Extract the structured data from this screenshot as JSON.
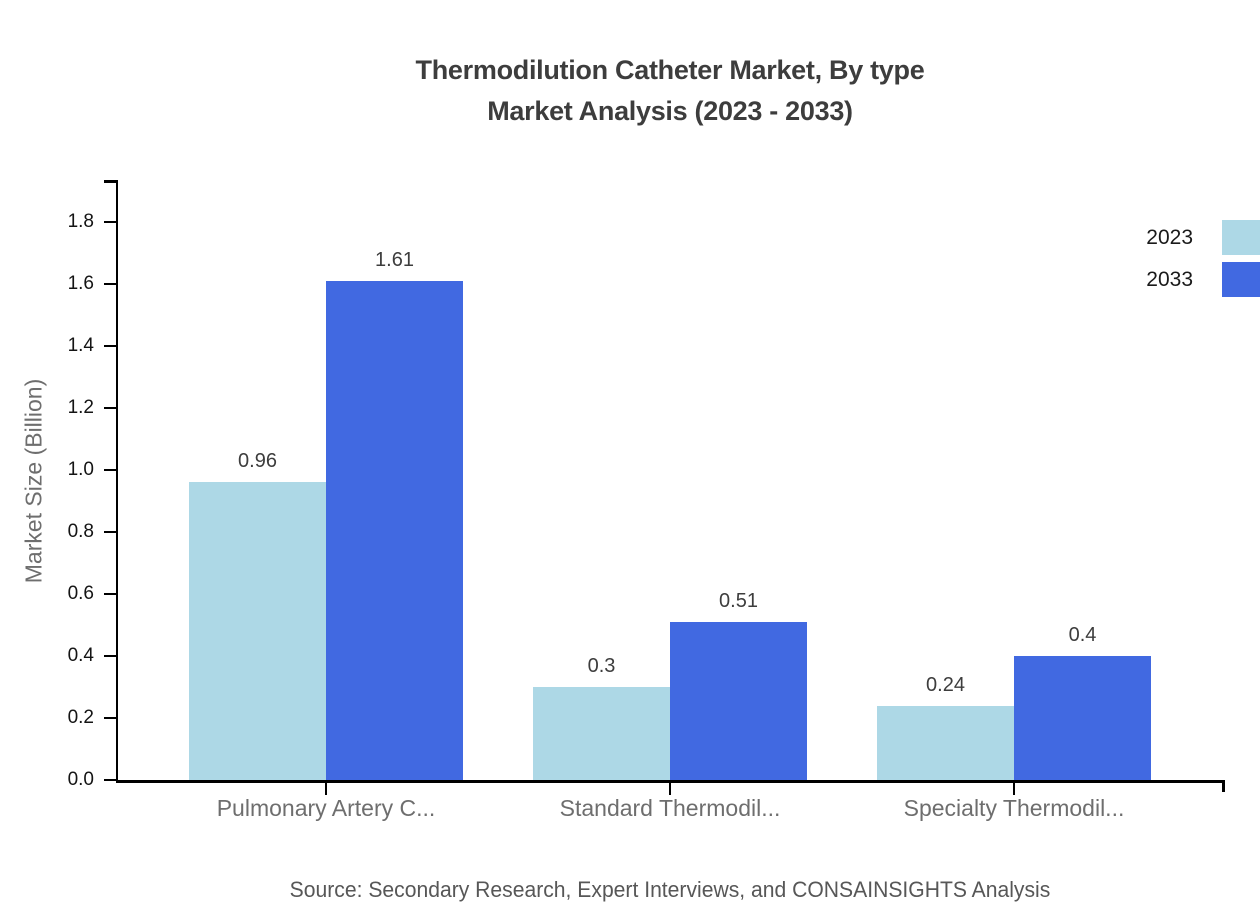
{
  "title": {
    "line1": "Thermodilution Catheter Market, By type",
    "line2": "Market Analysis (2023 - 2033)"
  },
  "source": "Source: Secondary Research, Expert Interviews, and CONSAINSIGHTS Analysis",
  "chart_data": {
    "type": "bar",
    "title": "Thermodilution Catheter Market, By type — Market Analysis (2023 - 2033)",
    "categories": [
      "Pulmonary Artery C...",
      "Standard Thermodil...",
      "Specialty Thermodil..."
    ],
    "series": [
      {
        "name": "2023",
        "color": "#ADD8E6",
        "values": [
          0.96,
          0.3,
          0.24
        ]
      },
      {
        "name": "2033",
        "color": "#4169E1",
        "values": [
          1.61,
          0.51,
          0.4
        ]
      }
    ],
    "xlabel": "",
    "ylabel": "Market Size (Billion)",
    "ylim": [
      0,
      1.94
    ],
    "yticks": [
      0.0,
      0.2,
      0.4,
      0.6,
      0.8,
      1.0,
      1.2,
      1.4,
      1.6,
      1.8
    ],
    "grid": false,
    "legend_position": "top-right",
    "value_labels_shown": true
  },
  "colors": {
    "axis": "#000000",
    "title_text": "#3d3d3d",
    "tick_label_text": "#141414",
    "category_label_text": "#6e6e6e",
    "value_label_text": "#3d3d3d",
    "source_text": "#575757"
  }
}
